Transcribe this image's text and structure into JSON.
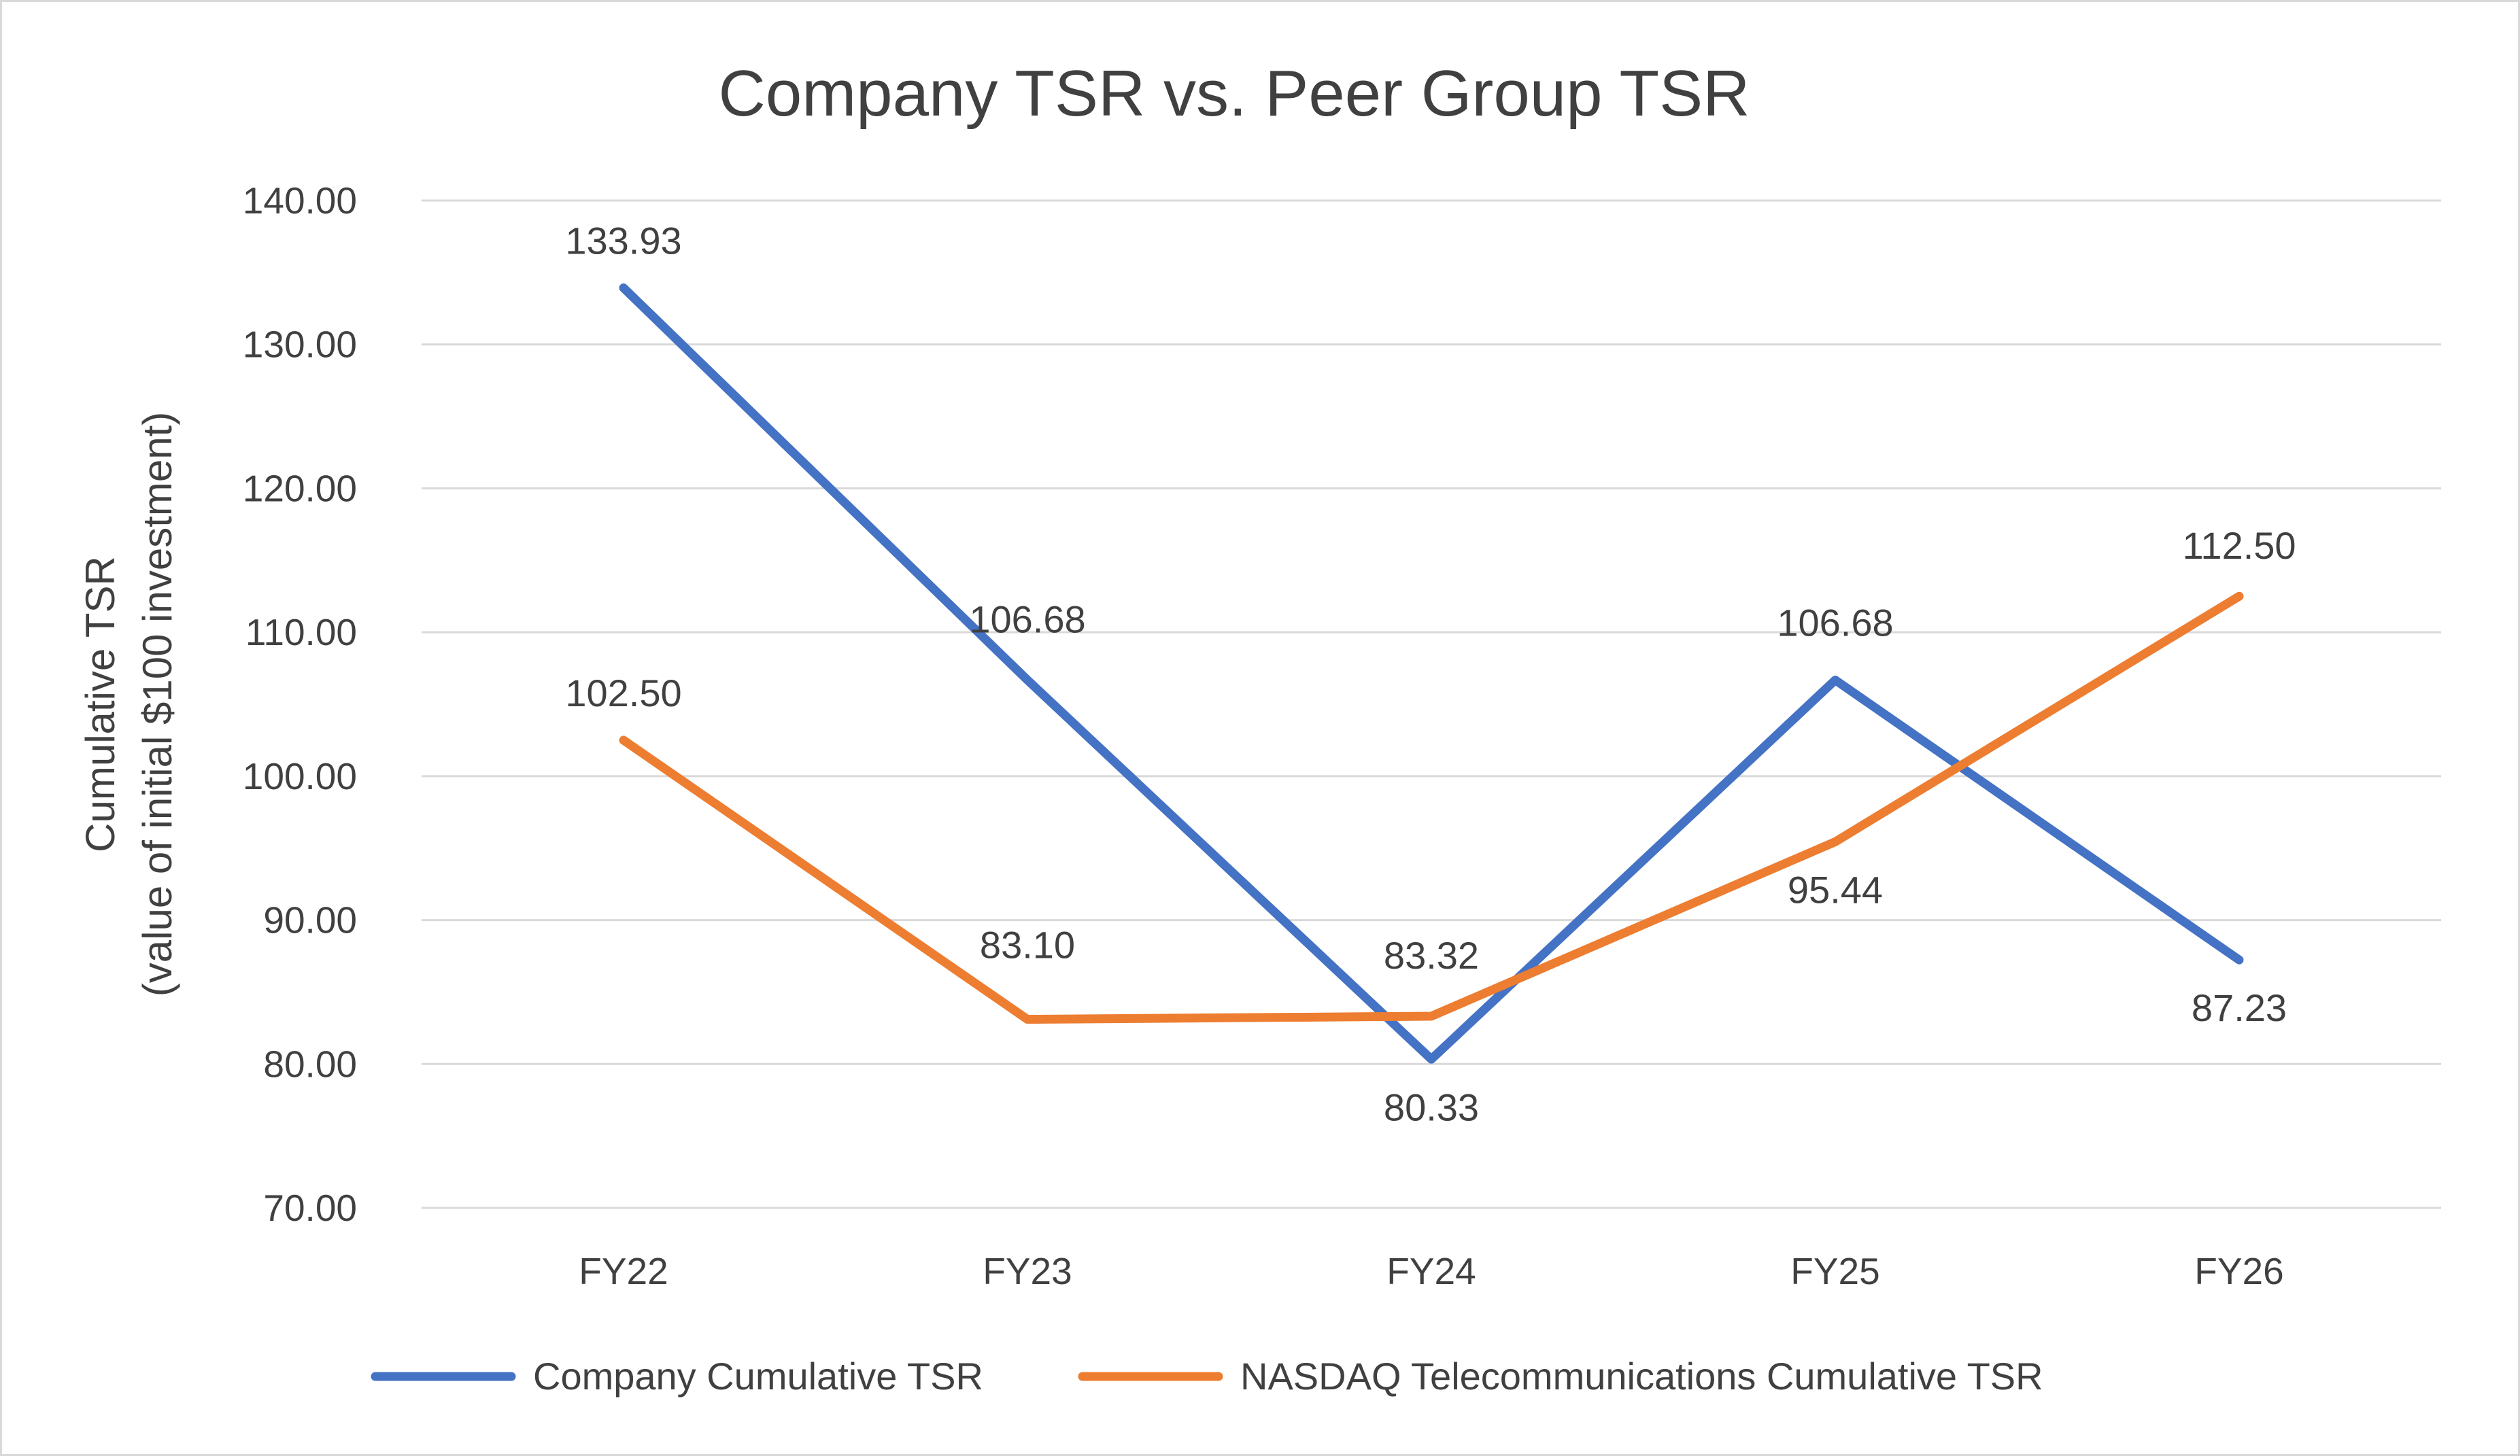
{
  "chart_data": {
    "type": "line",
    "title": "Company TSR vs. Peer Group TSR",
    "ylabel_line1": "Cumulative TSR",
    "ylabel_line2": "(value of initial $100 investment)",
    "xlabel": "",
    "categories": [
      "FY22",
      "FY23",
      "FY24",
      "FY25",
      "FY26"
    ],
    "ylim": [
      70,
      140
    ],
    "yticks": [
      70,
      80,
      90,
      100,
      110,
      120,
      130,
      140
    ],
    "ytick_labels": [
      "70.00",
      "80.00",
      "90.00",
      "100.00",
      "110.00",
      "120.00",
      "130.00",
      "140.00"
    ],
    "grid": true,
    "legend_position": "bottom",
    "series": [
      {
        "name": "Company Cumulative TSR",
        "color": "#4472C4",
        "values": [
          133.93,
          106.68,
          80.33,
          106.68,
          87.23
        ],
        "labels": [
          "133.93",
          "106.68",
          "80.33",
          "106.68",
          "87.23"
        ]
      },
      {
        "name": "NASDAQ Telecommunications Cumulative TSR",
        "color": "#ED7D31",
        "values": [
          102.5,
          83.1,
          83.32,
          95.44,
          112.5
        ],
        "labels": [
          "102.50",
          "83.10",
          "83.32",
          "95.44",
          "112.50"
        ]
      }
    ]
  }
}
